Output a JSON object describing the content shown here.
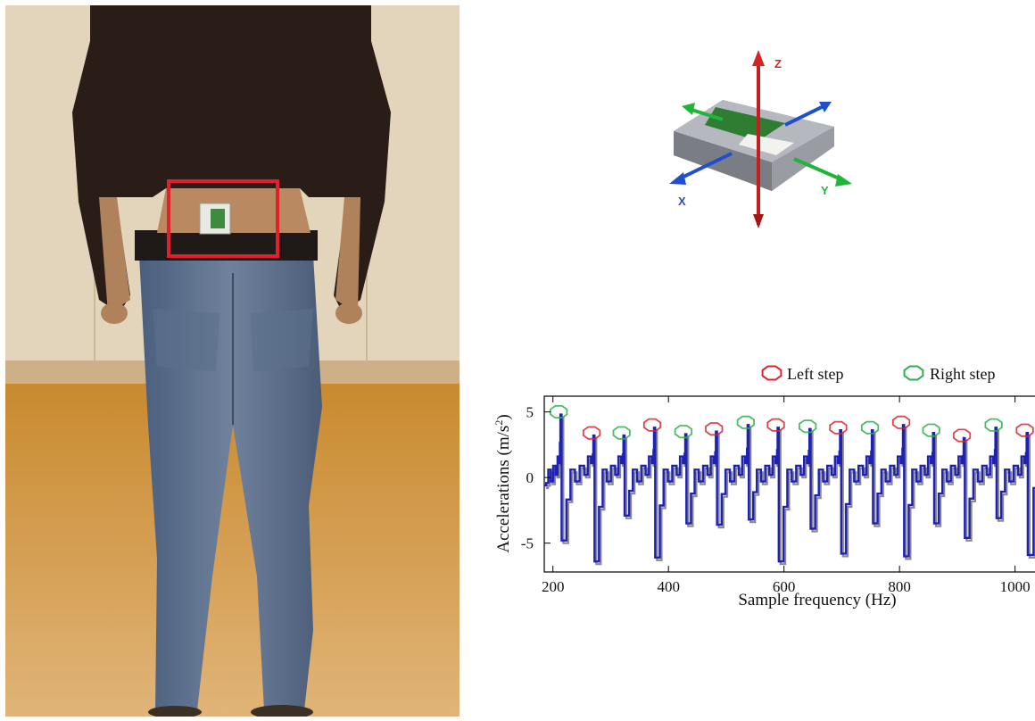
{
  "device": {
    "axes": {
      "z": "Z",
      "x": "X",
      "y": "Y"
    },
    "colors": {
      "z": "#cc1f1f",
      "x": "#1f4fd1",
      "y": "#1fb53a"
    }
  },
  "chart_data": {
    "type": "line",
    "xlabel": "Sample frequency (Hz)",
    "ylabel": "Accelerations (m/s²)",
    "ylabel_main": "Accelerations (m/s",
    "ylabel_sup": "2",
    "ylabel_tail": ")",
    "xlim": [
      185,
      1050
    ],
    "ylim": [
      -7.2,
      6.2
    ],
    "xticks": [
      200,
      400,
      600,
      800,
      1000
    ],
    "yticks": [
      -5,
      0,
      5
    ],
    "legend": {
      "placement": "top-right",
      "entries": [
        {
          "label": "Left step",
          "color": "#d9232e"
        },
        {
          "label": "Right step",
          "color": "#2bb24c"
        }
      ]
    },
    "series_colors": {
      "primary": "#1e22b4",
      "secondary": "#8a8a8a"
    },
    "steps": [
      {
        "x": 213,
        "peak": 4.8,
        "min": -4.8,
        "side": "right"
      },
      {
        "x": 270,
        "peak": 3.2,
        "min": -6.4,
        "side": "left"
      },
      {
        "x": 322,
        "peak": 3.2,
        "min": -2.9,
        "side": "right"
      },
      {
        "x": 375,
        "peak": 3.8,
        "min": -6.1,
        "side": "left"
      },
      {
        "x": 429,
        "peak": 3.3,
        "min": -3.5,
        "side": "right"
      },
      {
        "x": 482,
        "peak": 3.5,
        "min": -3.6,
        "side": "left"
      },
      {
        "x": 537,
        "peak": 4.0,
        "min": -3.2,
        "side": "right"
      },
      {
        "x": 589,
        "peak": 3.8,
        "min": -6.4,
        "side": "left"
      },
      {
        "x": 644,
        "peak": 3.7,
        "min": -3.9,
        "side": "right"
      },
      {
        "x": 697,
        "peak": 3.6,
        "min": -5.8,
        "side": "left"
      },
      {
        "x": 752,
        "peak": 3.6,
        "min": -3.5,
        "side": "right"
      },
      {
        "x": 806,
        "peak": 4.0,
        "min": -6.0,
        "side": "left"
      },
      {
        "x": 858,
        "peak": 3.4,
        "min": -3.5,
        "side": "right"
      },
      {
        "x": 911,
        "peak": 3.0,
        "min": -4.6,
        "side": "left"
      },
      {
        "x": 966,
        "peak": 3.8,
        "min": -3.1,
        "side": "right"
      },
      {
        "x": 1020,
        "peak": 3.4,
        "min": -5.9,
        "side": "left"
      }
    ]
  }
}
